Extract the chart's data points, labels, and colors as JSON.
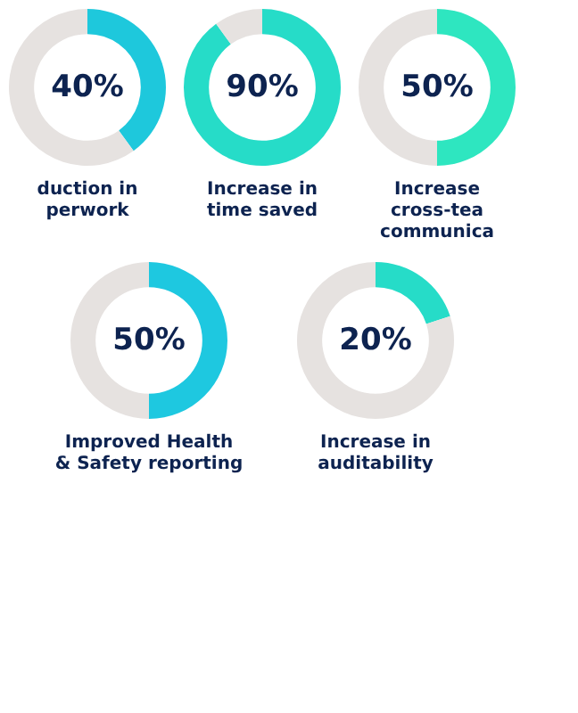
{
  "chart_data": [
    {
      "type": "donut",
      "title": "duction in\nperwork",
      "categories": [
        null,
        null
      ],
      "values": [
        40,
        60
      ],
      "colors": [
        "#1ec8dc",
        "#e6e2e0"
      ],
      "annotations": [
        "40%"
      ]
    },
    {
      "type": "donut",
      "title": "Increase in\ntime saved",
      "categories": [
        null,
        null
      ],
      "values": [
        90,
        10
      ],
      "colors": [
        "#26dcc8",
        "#e6e2e0"
      ],
      "annotations": [
        "90%"
      ]
    },
    {
      "type": "donut",
      "title": "Increase\ncross-tea\ncommunica",
      "categories": [
        null,
        null
      ],
      "values": [
        50,
        50
      ],
      "colors": [
        "#2ee6c0",
        "#e6e2e0"
      ],
      "annotations": [
        "50%"
      ]
    },
    {
      "type": "donut",
      "title": "Improved Health\n& Safety reporting",
      "categories": [
        null,
        null
      ],
      "values": [
        50,
        50
      ],
      "colors": [
        "#1ec8e0",
        "#e6e2e0"
      ],
      "annotations": [
        "50%"
      ]
    },
    {
      "type": "donut",
      "title": "Increase in\nauditability",
      "categories": [
        null,
        null
      ],
      "values": [
        20,
        80
      ],
      "colors": [
        "#26dcc8",
        "#e6e2e0"
      ],
      "annotations": [
        "20%"
      ]
    }
  ]
}
